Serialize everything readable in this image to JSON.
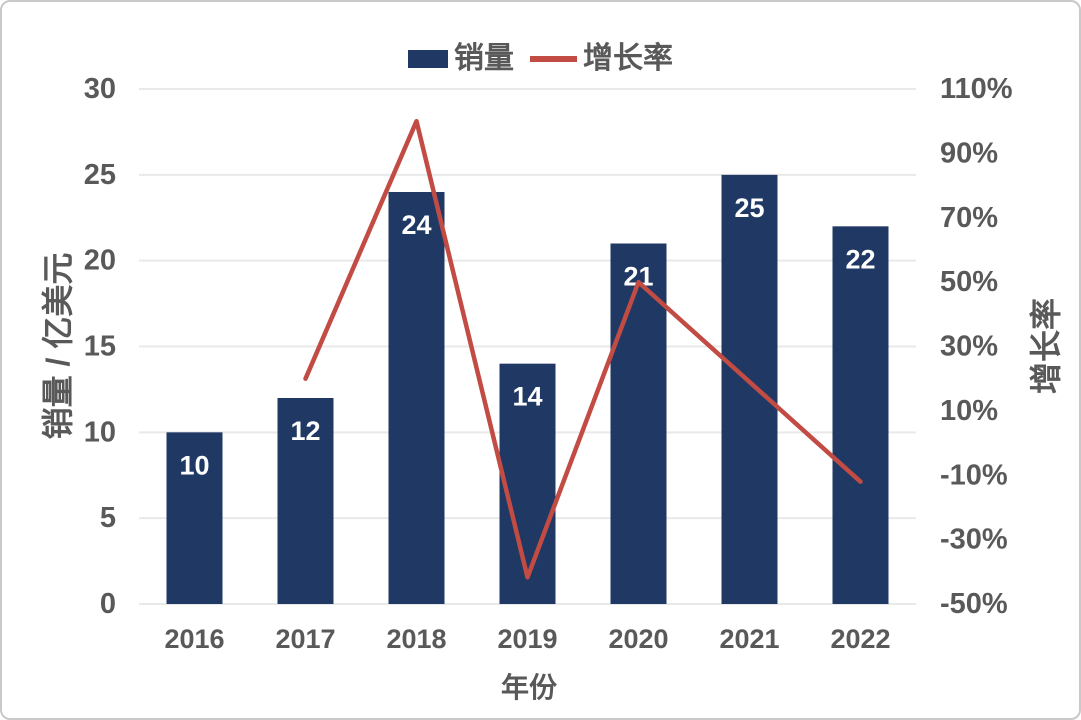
{
  "chart_data": {
    "type": "bar+line combo",
    "categories": [
      "2016",
      "2017",
      "2018",
      "2019",
      "2020",
      "2021",
      "2022"
    ],
    "series": [
      {
        "name": "销量",
        "type": "bar",
        "axis": "left",
        "values": [
          10,
          12,
          24,
          14,
          21,
          25,
          22
        ],
        "value_labels": [
          "10",
          "12",
          "24",
          "14",
          "21",
          "25",
          "22"
        ],
        "color": "#1F3864"
      },
      {
        "name": "增长率",
        "type": "line",
        "axis": "right",
        "x": [
          "2017",
          "2018",
          "2019",
          "2020",
          "2021",
          "2022"
        ],
        "values": [
          20,
          100,
          -41.7,
          50,
          19,
          -12
        ],
        "color": "#C24B43"
      }
    ],
    "title": "",
    "xlabel": "年份",
    "ylabel_left": "销量 / 亿美元",
    "ylabel_right": "增长率",
    "left_axis": {
      "min": 0,
      "max": 30,
      "ticks": [
        30,
        25,
        20,
        15,
        10,
        5,
        0
      ],
      "tick_labels": [
        "30",
        "25",
        "20",
        "15",
        "10",
        "5",
        "0"
      ]
    },
    "right_axis": {
      "min": -50,
      "max": 110,
      "ticks": [
        110,
        90,
        70,
        50,
        30,
        10,
        -10,
        -30,
        -50
      ],
      "tick_labels": [
        "110%",
        "90%",
        "70%",
        "50%",
        "30%",
        "10%",
        "-10%",
        "-30%",
        "-50%"
      ]
    },
    "grid": true,
    "legend_position": "top-center"
  },
  "legend": {
    "bars_label": "销量",
    "line_label": "增长率"
  },
  "axes": {
    "left_title": "销量 / 亿美元",
    "right_title": "增长率",
    "x_title": "年份"
  },
  "colors": {
    "bar": "#1F3864",
    "line": "#C24B43",
    "grid": "#E9E9E9",
    "axis_text": "#595959",
    "bar_value_label": "#FFFFFF",
    "frame_border": "#C9C9C9",
    "background": "#FFFFFF"
  }
}
